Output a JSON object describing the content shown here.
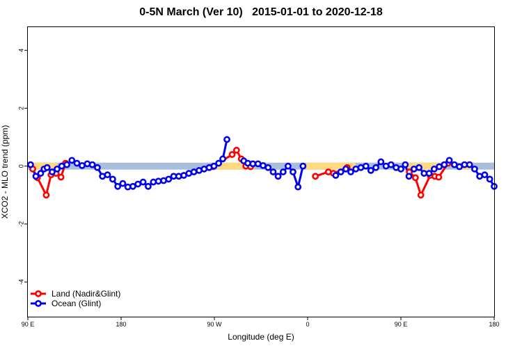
{
  "chart_data": {
    "type": "line",
    "title": "0-5N March (Ver 10)   2015-01-01 to 2020-12-18",
    "xlabel": "Longitude (deg E)",
    "ylabel": "XCO2 - MLO trend (ppm)",
    "xlim": [
      90,
      450
    ],
    "ylim": [
      -5.2,
      4.8
    ],
    "x_ticks": [
      {
        "value": 90,
        "label": "90 E"
      },
      {
        "value": 162,
        "label": "180"
      },
      {
        "value": 234,
        "label": "90 W"
      },
      {
        "value": 306,
        "label": "0"
      },
      {
        "value": 378,
        "label": "90 E"
      },
      {
        "value": 450,
        "label": "180"
      }
    ],
    "y_ticks": [
      -4,
      -2,
      0,
      2,
      4
    ],
    "bands": [
      {
        "name": "land",
        "color": "#ffd980",
        "ranges": [
          [
            93,
            113
          ],
          [
            236,
            265
          ],
          [
            305,
            343
          ],
          [
            382,
            412
          ],
          [
            423,
            432
          ]
        ]
      },
      {
        "name": "ocean",
        "color": "#a8bfdc",
        "ranges": [
          [
            90,
            450
          ]
        ]
      },
      {
        "band_y": [
          -0.12,
          0.12
        ]
      }
    ],
    "series": [
      {
        "name": "Land (Nadir&Glint)",
        "color": "#ff0000",
        "segments": [
          [
            [
              93.8,
              -0.1
            ],
            [
              97.4,
              -0.4
            ],
            [
              104.2,
              -1.0
            ],
            [
              107.9,
              -0.3
            ],
            [
              111.9,
              -0.25
            ],
            [
              115.6,
              -0.38
            ],
            [
              119.1,
              0.1
            ]
          ],
          [
            [
              233.0,
              -0.02
            ],
            [
              247.7,
              0.4
            ],
            [
              251.1,
              0.55
            ],
            [
              254.8,
              0.25
            ],
            [
              258.3,
              0.0
            ],
            [
              262.0,
              -0.02
            ]
          ],
          [
            [
              312.0,
              -0.35
            ],
            [
              322.0,
              -0.2
            ],
            [
              325.9,
              -0.25
            ],
            [
              336.5,
              -0.05
            ]
          ],
          [
            [
              384.5,
              -0.2
            ],
            [
              389.2,
              -0.4
            ],
            [
              393.4,
              -1.0
            ],
            [
              400.6,
              -0.32
            ],
            [
              404.2,
              -0.35
            ],
            [
              407.2,
              -0.38
            ],
            [
              414.4,
              0.1
            ]
          ]
        ]
      },
      {
        "name": "Ocean (Glint)",
        "color": "#0000ee",
        "segments": [
          [
            [
              92.1,
              0.05
            ],
            [
              96.2,
              -0.35
            ],
            [
              99.9,
              -0.25
            ],
            [
              102.5,
              -0.1
            ],
            [
              104.9,
              -0.05
            ],
            [
              108.8,
              -0.2
            ],
            [
              112.6,
              -0.1
            ],
            [
              116.2,
              0.0
            ],
            [
              120.1,
              0.05
            ],
            [
              124.0,
              0.2
            ],
            [
              127.9,
              0.1
            ],
            [
              131.9,
              0.02
            ],
            [
              135.9,
              0.08
            ],
            [
              139.8,
              0.05
            ],
            [
              143.7,
              -0.05
            ],
            [
              147.6,
              -0.35
            ],
            [
              151.5,
              -0.3
            ],
            [
              155.5,
              -0.45
            ],
            [
              159.4,
              -0.7
            ],
            [
              163.3,
              -0.6
            ],
            [
              167.2,
              -0.72
            ],
            [
              171.1,
              -0.7
            ],
            [
              175.0,
              -0.62
            ],
            [
              179.0,
              -0.55
            ],
            [
              182.9,
              -0.7
            ],
            [
              186.9,
              -0.55
            ],
            [
              190.8,
              -0.52
            ],
            [
              194.8,
              -0.5
            ],
            [
              198.7,
              -0.45
            ],
            [
              202.6,
              -0.35
            ],
            [
              206.5,
              -0.35
            ],
            [
              210.4,
              -0.32
            ],
            [
              214.3,
              -0.25
            ],
            [
              218.2,
              -0.2
            ],
            [
              222.2,
              -0.15
            ],
            [
              226.1,
              -0.1
            ],
            [
              230.0,
              -0.05
            ],
            [
              233.7,
              0.0
            ],
            [
              237.3,
              0.1
            ],
            [
              240.5,
              0.25
            ],
            [
              243.7,
              0.92
            ]
          ],
          [
            [
              256.7,
              0.18
            ],
            [
              259.8,
              0.1
            ],
            [
              263.7,
              0.08
            ],
            [
              267.7,
              0.08
            ],
            [
              271.6,
              0.02
            ],
            [
              275.5,
              -0.05
            ],
            [
              279.4,
              -0.2
            ],
            [
              283.2,
              -0.35
            ],
            [
              287.1,
              -0.2
            ],
            [
              290.9,
              0.0
            ],
            [
              294.7,
              -0.2
            ],
            [
              298.6,
              -0.72
            ],
            [
              302.4,
              0.0
            ]
          ],
          [
            [
              327.7,
              -0.32
            ],
            [
              331.6,
              -0.2
            ],
            [
              335.5,
              -0.1
            ],
            [
              339.3,
              -0.2
            ],
            [
              343.2,
              -0.1
            ],
            [
              347.1,
              -0.05
            ],
            [
              351.0,
              0.0
            ],
            [
              354.8,
              -0.15
            ],
            [
              358.7,
              -0.05
            ],
            [
              362.6,
              0.15
            ],
            [
              366.5,
              0.0
            ],
            [
              370.4,
              0.05
            ],
            [
              374.3,
              -0.05
            ],
            [
              378.0,
              -0.1
            ],
            [
              381.4,
              0.05
            ],
            [
              384.2,
              -0.35
            ],
            [
              388.1,
              -0.1
            ],
            [
              392.0,
              -0.05
            ],
            [
              395.9,
              -0.25
            ],
            [
              399.8,
              -0.25
            ],
            [
              403.7,
              -0.1
            ],
            [
              407.6,
              -0.02
            ],
            [
              411.5,
              0.05
            ],
            [
              415.4,
              0.2
            ],
            [
              419.3,
              0.05
            ],
            [
              423.2,
              -0.02
            ],
            [
              427.1,
              0.05
            ],
            [
              431.0,
              0.05
            ],
            [
              434.9,
              -0.1
            ],
            [
              438.8,
              -0.35
            ],
            [
              442.7,
              -0.3
            ],
            [
              446.6,
              -0.45
            ],
            [
              450.0,
              -0.7
            ]
          ]
        ]
      }
    ],
    "legend": {
      "position": "bottom-left",
      "entries": [
        "Land (Nadir&Glint)",
        "Ocean (Glint)"
      ]
    },
    "grid": false
  }
}
